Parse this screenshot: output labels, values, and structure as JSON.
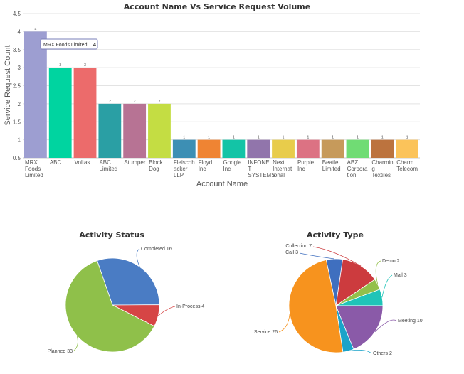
{
  "chart_data": [
    {
      "type": "bar",
      "title": "Account Name Vs Service Request Volume",
      "xlabel": "Account Name",
      "ylabel": "Service Request Count",
      "ylim": [
        0.5,
        4.5
      ],
      "yticks": [
        "0.5",
        "1",
        "1.5",
        "2",
        "2.5",
        "3",
        "3.5",
        "4",
        "4.5"
      ],
      "categories": [
        [
          "MRX",
          "Foods",
          "Limited"
        ],
        [
          "ABC"
        ],
        [
          "Voltas"
        ],
        [
          "ABC",
          "Limited"
        ],
        [
          "Stumper"
        ],
        [
          "Block",
          "Dog"
        ],
        [
          "Fleischh",
          "acker",
          "LLP"
        ],
        [
          "Floyd",
          "Inc"
        ],
        [
          "Google",
          "Inc"
        ],
        [
          "INFONE",
          "T",
          "SYSTEMS"
        ],
        [
          "Next",
          "Internat",
          "ional"
        ],
        [
          "Purple",
          "Inc"
        ],
        [
          "Beatle",
          "Limited"
        ],
        [
          "ABZ",
          "Corpora",
          "tion"
        ],
        [
          "Charmin",
          "g",
          "Textiles"
        ],
        [
          "Charm",
          "Telecom"
        ]
      ],
      "values": [
        4,
        3,
        3,
        2,
        2,
        2,
        1,
        1,
        1,
        1,
        1,
        1,
        1,
        1,
        1,
        1
      ],
      "colors": [
        "#9d9ed1",
        "#00d4a0",
        "#ec6b6b",
        "#2a9fa4",
        "#b77394",
        "#c4dd43",
        "#3d8fb4",
        "#ef8433",
        "#13c4a6",
        "#9175ab",
        "#e8cc4b",
        "#dc7283",
        "#c69a5b",
        "#70dc74",
        "#bc733e",
        "#fbc35a"
      ],
      "data_labels": [
        "4",
        "3",
        "3",
        "2",
        "2",
        "2",
        "1",
        "1",
        "1",
        "1",
        "1",
        "1",
        "1",
        "1",
        "1",
        "1"
      ],
      "tooltip": {
        "label": "MRX Foods Limited:",
        "value": "4"
      }
    },
    {
      "type": "pie",
      "title": "Activity Status",
      "labels": [
        "Completed",
        "In-Process",
        "Planned"
      ],
      "values": [
        16,
        4,
        33
      ],
      "colors": [
        "#4a7cc4",
        "#d64545",
        "#8fc04a"
      ],
      "slice_labels": [
        "Completed 16",
        "In-Process 4",
        "Planned 33"
      ]
    },
    {
      "type": "pie",
      "title": "Activity Type",
      "labels": [
        "Call",
        "Collection",
        "Demo",
        "Mail",
        "Meeting",
        "Others",
        "Service"
      ],
      "values": [
        3,
        7,
        2,
        3,
        10,
        2,
        26
      ],
      "colors": [
        "#3f6fbf",
        "#cc3b3e",
        "#93c04a",
        "#20c4b8",
        "#8a5aa8",
        "#1ba3c9",
        "#f7931e"
      ],
      "slice_labels": [
        "Call 3",
        "Collection 7",
        "Demo 2",
        "Mail 3",
        "Meeting 10",
        "Others 2",
        "Service 26"
      ]
    }
  ]
}
